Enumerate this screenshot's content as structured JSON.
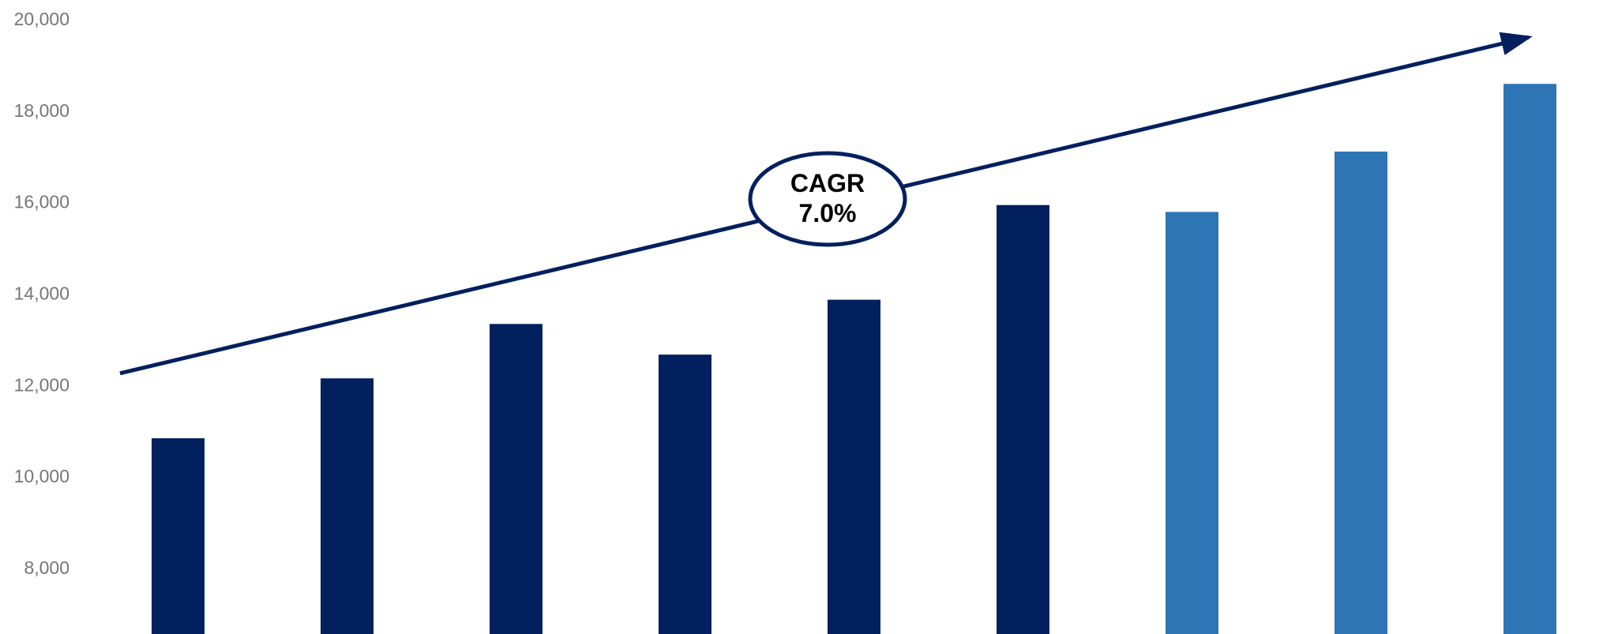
{
  "chart_data": {
    "type": "bar",
    "title": "",
    "xlabel": "",
    "ylabel": "",
    "ylim": [
      7000,
      20000
    ],
    "yticks": [
      "8,000",
      "10,000",
      "12,000",
      "14,000",
      "16,000",
      "18,000",
      "20,000"
    ],
    "ytick_values": [
      8000,
      10000,
      12000,
      14000,
      16000,
      18000,
      20000
    ],
    "grid": false,
    "legend": "none",
    "categories": [
      "",
      "",
      "",
      "",
      "",
      "",
      "",
      "",
      ""
    ],
    "values": [
      10830,
      12140,
      13330,
      12660,
      13860,
      15930,
      15780,
      17100,
      18580
    ],
    "bar_colors": [
      "#021f5e",
      "#021f5e",
      "#021f5e",
      "#021f5e",
      "#021f5e",
      "#021f5e",
      "#2e75b6",
      "#2e75b6",
      "#2e75b6"
    ],
    "trend_arrow": {
      "start_value": 12250,
      "end_value": 19600,
      "color": "#021f5e"
    },
    "annotation": {
      "line1": "CAGR",
      "line2": "7.0%"
    }
  }
}
